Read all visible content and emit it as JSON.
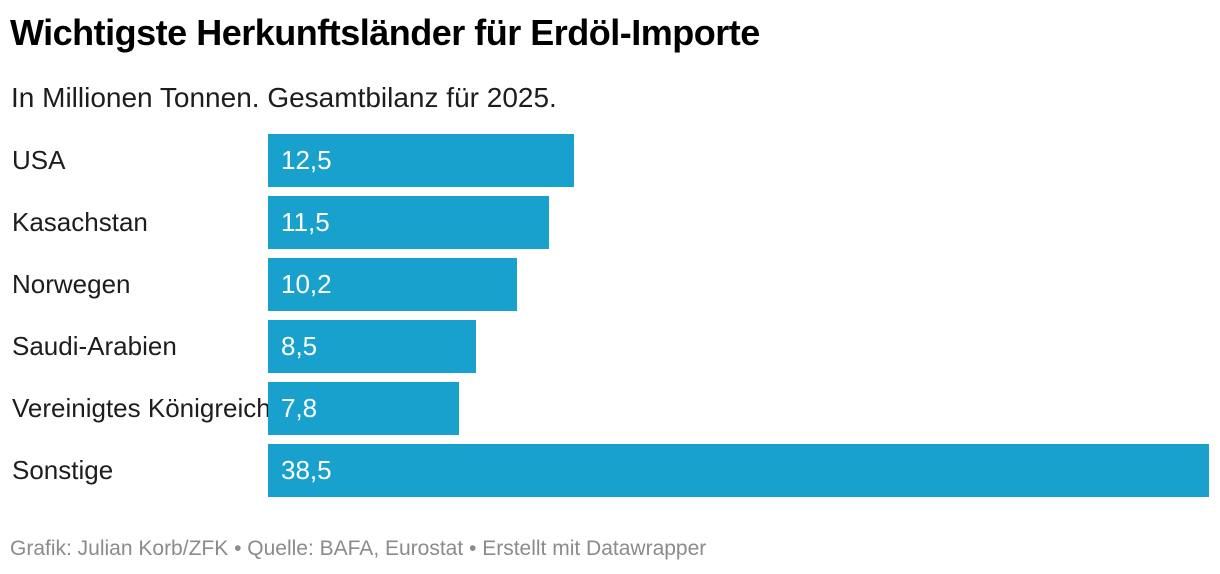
{
  "header": {
    "title": "Wichtigste Herkunftsländer für Erdöl-Importe",
    "subtitle": "In Millionen Tonnen. Gesamtbilanz für 2025."
  },
  "footer": {
    "text": "Grafik: Julian Korb/ZFK • Quelle: BAFA, Eurostat • Erstellt mit Datawrapper"
  },
  "colors": {
    "bar": "#18a1cd",
    "title": "#000000",
    "label": "#1d1d1d",
    "value_label": "#ffffff",
    "footer": "#8b8b8b",
    "background": "#ffffff"
  },
  "chart_data": {
    "type": "bar",
    "orientation": "horizontal",
    "title": "Wichtigste Herkunftsländer für Erdöl-Importe",
    "subtitle": "In Millionen Tonnen. Gesamtbilanz für 2025.",
    "unit": "Millionen Tonnen",
    "categories": [
      "USA",
      "Kasachstan",
      "Norwegen",
      "Saudi-Arabien",
      "Vereinigtes Königreich",
      "Sonstige"
    ],
    "values": [
      12.5,
      11.5,
      10.2,
      8.5,
      7.8,
      38.5
    ],
    "value_labels": [
      "12,5",
      "11,5",
      "10,2",
      "8,5",
      "7,8",
      "38,5"
    ],
    "xlabel": "",
    "ylabel": "",
    "xlim": [
      0,
      38.5
    ],
    "grid": false,
    "legend": false,
    "value_label_position": "inside-left"
  }
}
